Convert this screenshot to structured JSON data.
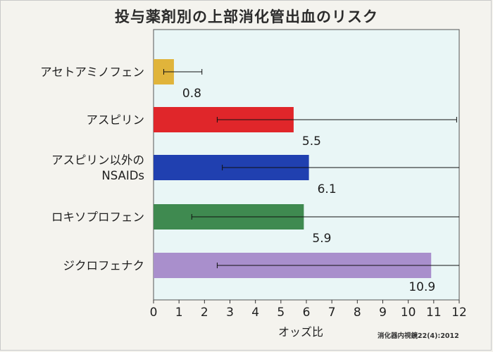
{
  "chart_data": {
    "type": "bar",
    "orientation": "horizontal",
    "title": "投与薬剤別の上部消化管出血のリスク",
    "xlabel": "オッズ比",
    "ylabel": "",
    "xlim": [
      0,
      12
    ],
    "xticks": [
      0,
      1,
      2,
      3,
      4,
      5,
      6,
      7,
      8,
      9,
      10,
      11,
      12
    ],
    "categories": [
      [
        "アセトアミノフェン"
      ],
      [
        "アスピリン"
      ],
      [
        "アスピリン以外の",
        "NSAIDs"
      ],
      [
        "ロキソプロフェン"
      ],
      [
        "ジクロフェナク"
      ]
    ],
    "values": [
      0.8,
      5.5,
      6.1,
      5.9,
      10.9
    ],
    "value_labels": [
      "0.8",
      "5.5",
      "6.1",
      "5.9",
      "10.9"
    ],
    "ci_low": [
      0.4,
      2.5,
      2.7,
      1.5,
      2.5
    ],
    "ci_high": [
      1.9,
      11.9,
      12,
      12,
      12
    ],
    "colors": [
      "#e0b43b",
      "#e0262a",
      "#2040b0",
      "#3f8a50",
      "#a98fcc"
    ],
    "plot_background": "#e9f6f6",
    "source": "消化器内視鏡22(4):2012"
  }
}
